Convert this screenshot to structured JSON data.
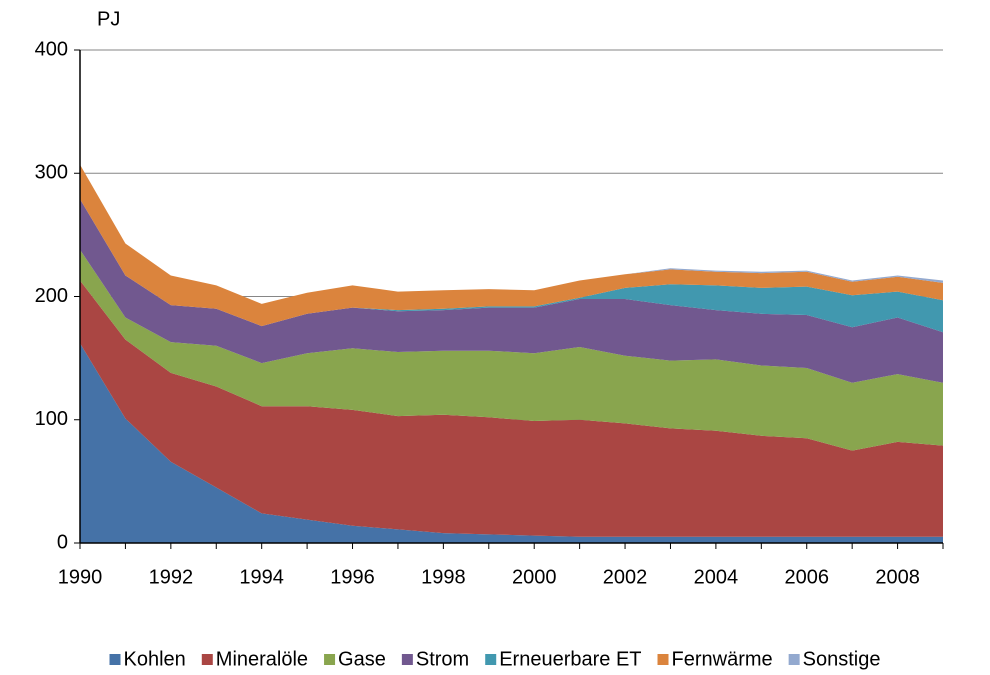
{
  "chart_data": {
    "type": "area",
    "stacked": true,
    "y_label": "PJ",
    "x": [
      1990,
      1991,
      1992,
      1993,
      1994,
      1995,
      1996,
      1997,
      1998,
      1999,
      2000,
      2001,
      2002,
      2003,
      2004,
      2005,
      2006,
      2007,
      2008,
      2009
    ],
    "xlim": [
      1990,
      2009
    ],
    "xticks": [
      1990,
      1992,
      1994,
      1996,
      1998,
      2000,
      2002,
      2004,
      2006,
      2008
    ],
    "ylim": [
      0,
      400
    ],
    "yticks": [
      0,
      100,
      200,
      300,
      400
    ],
    "grid": true,
    "legend": "bottom",
    "series": [
      {
        "name": "Kohlen",
        "color": "#4572a7",
        "values": [
          162,
          101,
          66,
          45,
          24,
          19,
          14,
          11,
          8,
          7,
          6,
          5,
          5,
          5,
          5,
          5,
          5,
          5,
          5,
          5
        ]
      },
      {
        "name": "Mineralöle",
        "color": "#aa4643",
        "values": [
          51,
          64,
          72,
          82,
          87,
          92,
          94,
          92,
          96,
          95,
          93,
          95,
          92,
          88,
          86,
          82,
          80,
          70,
          77,
          74
        ]
      },
      {
        "name": "Gase",
        "color": "#89a54e",
        "values": [
          25,
          18,
          25,
          33,
          35,
          43,
          50,
          52,
          52,
          54,
          55,
          59,
          55,
          55,
          58,
          57,
          57,
          55,
          55,
          51
        ]
      },
      {
        "name": "Strom",
        "color": "#71588f",
        "values": [
          41,
          34,
          30,
          30,
          30,
          32,
          33,
          33,
          33,
          35,
          37,
          39,
          46,
          45,
          40,
          42,
          43,
          45,
          46,
          41
        ]
      },
      {
        "name": "Erneuerbare ET",
        "color": "#4198af",
        "values": [
          0,
          0,
          0,
          0,
          0,
          0,
          0,
          1,
          1,
          1,
          1,
          1,
          9,
          17,
          20,
          21,
          23,
          26,
          21,
          26
        ]
      },
      {
        "name": "Fernwärme",
        "color": "#db843d",
        "values": [
          28,
          26,
          24,
          19,
          18,
          17,
          18,
          15,
          15,
          14,
          13,
          14,
          11,
          12,
          11,
          12,
          12,
          11,
          12,
          14
        ]
      },
      {
        "name": "Sonstige",
        "color": "#93a9cf",
        "values": [
          0,
          0,
          0,
          0,
          0,
          0,
          0,
          0,
          0,
          0,
          0,
          0,
          0,
          1,
          1,
          1,
          1,
          1,
          1,
          2
        ]
      }
    ]
  }
}
